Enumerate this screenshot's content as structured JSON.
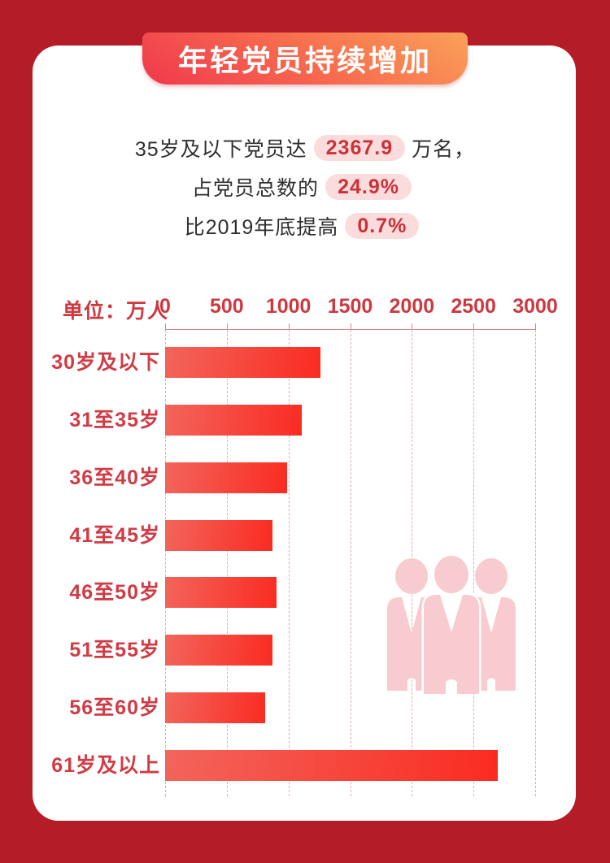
{
  "page": {
    "background_color": "#b41d27",
    "card_color": "#ffffff"
  },
  "banner": {
    "title": "年轻党员持续增加",
    "gradient_from": "#f13d4d",
    "gradient_mid": "#f7704f",
    "gradient_to": "#faa158",
    "text_color": "#ffffff"
  },
  "stats": {
    "line1": {
      "prefix": "35岁及以下党员达",
      "value": "2367.9",
      "suffix": "万名，"
    },
    "line2": {
      "prefix": "占党员总数的",
      "value": "24.9%",
      "suffix": ""
    },
    "line3": {
      "prefix": "比2019年底提高",
      "value": "0.7%",
      "suffix": ""
    },
    "highlight_bg": "#fbdcdd",
    "highlight_color": "#cc3138"
  },
  "chart_data": {
    "type": "bar",
    "orientation": "horizontal",
    "title": "年轻党员持续增加",
    "unit_label": "单位：万人",
    "categories": [
      "30岁及以下",
      "31至35岁",
      "36至40岁",
      "41至45岁",
      "46至50岁",
      "51至55岁",
      "56至60岁",
      "61岁及以上"
    ],
    "values": [
      1257.9,
      1110.0,
      991.7,
      871.9,
      903.5,
      873.2,
      807.7,
      2698.9
    ],
    "xlim": [
      0,
      3000
    ],
    "xticks": [
      0,
      500,
      1000,
      1500,
      2000,
      2500,
      3000
    ],
    "grid": "vertical-dashed",
    "legend": "none",
    "bar_color_start": "#f2655c",
    "bar_color_end": "#fa2b21",
    "axis_color": "#d4878b",
    "tick_label_color": "#ce3940",
    "category_label_color": "#d03b44"
  },
  "icon": {
    "name": "people-group-icon",
    "color": "#f8cbd0"
  }
}
